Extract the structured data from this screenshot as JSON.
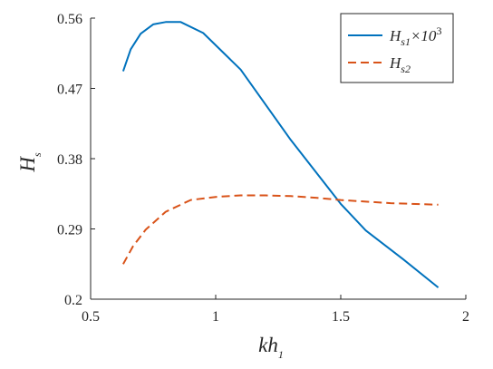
{
  "chart_data": {
    "type": "line",
    "xlabel": {
      "base": "kh",
      "sub": "1"
    },
    "ylabel": {
      "base": "H",
      "sub": "s"
    },
    "xlim": [
      0.5,
      2
    ],
    "ylim": [
      0.2,
      0.56
    ],
    "xticks": [
      0.5,
      1,
      1.5,
      2
    ],
    "xtick_labels": [
      "0.5",
      "1",
      "1.5",
      "2"
    ],
    "yticks": [
      0.2,
      0.29,
      0.38,
      0.47,
      0.56
    ],
    "ytick_labels": [
      "0.2",
      "0.29",
      "0.38",
      "0.47",
      "0.56"
    ],
    "grid": false,
    "legend_position": "top-right",
    "colors": {
      "series1": "#0072BD",
      "series2": "#D95319",
      "axes": "#262626"
    },
    "series": [
      {
        "legend_base": "H",
        "legend_sub": "s1",
        "legend_suffix": "×10",
        "legend_sup": "3",
        "style": "solid",
        "color": "#0072BD",
        "x": [
          0.63,
          0.66,
          0.7,
          0.75,
          0.8,
          0.86,
          0.95,
          1.1,
          1.3,
          1.5,
          1.6,
          1.75,
          1.89
        ],
        "y": [
          0.492,
          0.52,
          0.54,
          0.552,
          0.555,
          0.555,
          0.541,
          0.494,
          0.404,
          0.322,
          0.288,
          0.251,
          0.215
        ]
      },
      {
        "legend_base": "H",
        "legend_sub": "s2",
        "style": "dashed",
        "color": "#D95319",
        "x": [
          0.63,
          0.67,
          0.72,
          0.8,
          0.9,
          1.0,
          1.1,
          1.2,
          1.3,
          1.4,
          1.5,
          1.6,
          1.7,
          1.89
        ],
        "y": [
          0.245,
          0.268,
          0.289,
          0.312,
          0.327,
          0.331,
          0.333,
          0.333,
          0.332,
          0.33,
          0.327,
          0.325,
          0.323,
          0.321
        ]
      }
    ]
  }
}
